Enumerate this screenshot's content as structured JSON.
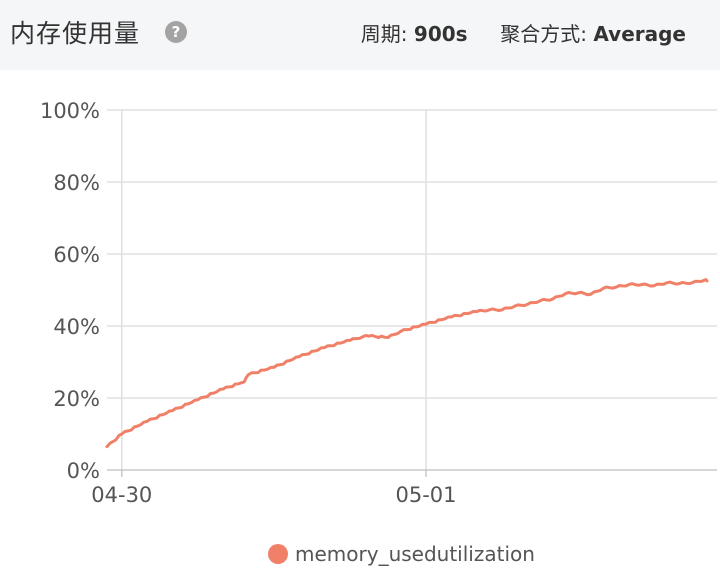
{
  "header": {
    "title": "内存使用量",
    "help_icon": "question-circle-icon",
    "period_label": "周期:",
    "period_value": "900s",
    "aggregation_label": "聚合方式:",
    "aggregation_value": "Average"
  },
  "colors": {
    "series": "#f08168",
    "grid": "#e0e0e0",
    "axis": "#c8c8c8"
  },
  "chart_data": {
    "type": "line",
    "title": "",
    "xlabel": "",
    "ylabel": "",
    "ylim": [
      0,
      100
    ],
    "y_ticks": [
      "0%",
      "20%",
      "40%",
      "60%",
      "80%",
      "100%"
    ],
    "y_tick_values": [
      0,
      20,
      40,
      60,
      80,
      100
    ],
    "x_range": [
      "2024-04-29T22:50",
      "2024-05-01T22:10"
    ],
    "x_ticks": [
      {
        "label": "04-30",
        "value": "2024-04-30T00:00"
      },
      {
        "label": "05-01",
        "value": "2024-05-01T00:00"
      }
    ],
    "grid": true,
    "legend_position": "bottom",
    "series": [
      {
        "name": "memory_usedutilization",
        "x": [
          "2024-04-29T22:50",
          "2024-04-30T00:00",
          "2024-04-30T02:00",
          "2024-04-30T04:00",
          "2024-04-30T06:00",
          "2024-04-30T08:00",
          "2024-04-30T09:40",
          "2024-04-30T10:00",
          "2024-04-30T12:00",
          "2024-04-30T14:00",
          "2024-04-30T16:00",
          "2024-04-30T18:00",
          "2024-04-30T19:00",
          "2024-04-30T19:30",
          "2024-04-30T21:00",
          "2024-04-30T22:00",
          "2024-05-01T00:00",
          "2024-05-01T02:00",
          "2024-05-01T04:00",
          "2024-05-01T05:00",
          "2024-05-01T06:00",
          "2024-05-01T07:00",
          "2024-05-01T08:00",
          "2024-05-01T09:00",
          "2024-05-01T10:00",
          "2024-05-01T11:00",
          "2024-05-01T12:00",
          "2024-05-01T13:00",
          "2024-05-01T14:00",
          "2024-05-01T15:00",
          "2024-05-01T16:00",
          "2024-05-01T17:00",
          "2024-05-01T18:00",
          "2024-05-01T19:00",
          "2024-05-01T20:00",
          "2024-05-01T21:00",
          "2024-05-01T22:00",
          "2024-05-01T22:10"
        ],
        "y": [
          6.5,
          10,
          13.5,
          16.5,
          19.5,
          22.5,
          24.5,
          26.5,
          28.5,
          31.5,
          34,
          36,
          37,
          37.2,
          36.8,
          38.5,
          40.5,
          42.5,
          44,
          44.5,
          44.5,
          45.5,
          46,
          47,
          47.5,
          49,
          49.2,
          48.8,
          50.5,
          50.8,
          51.5,
          51.5,
          51.2,
          52,
          51.8,
          52,
          52.8,
          52.5
        ]
      }
    ]
  }
}
